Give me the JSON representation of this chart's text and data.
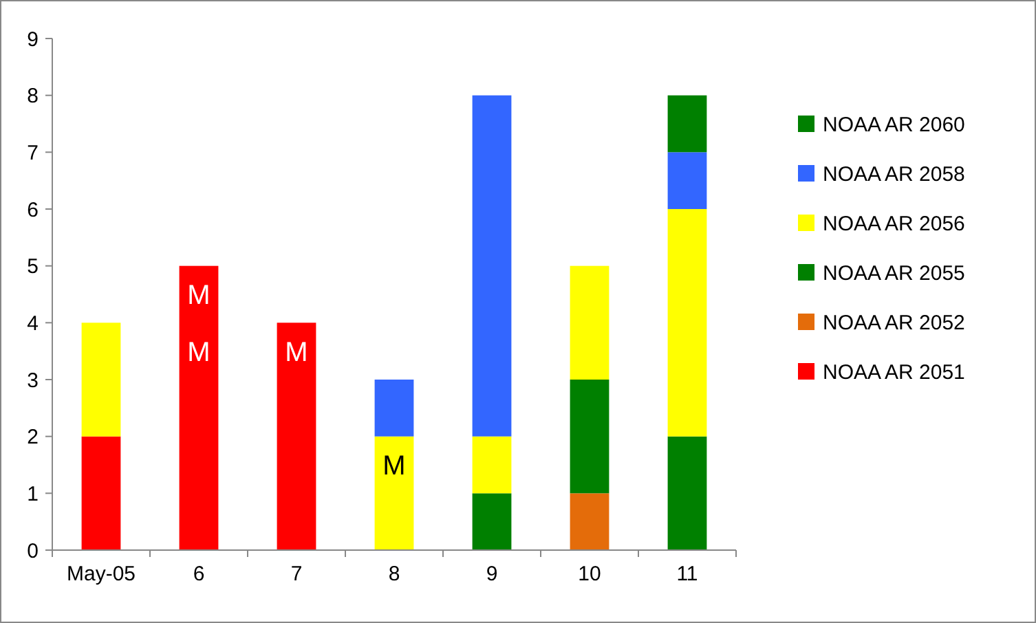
{
  "chart_data": {
    "type": "bar",
    "stacked": true,
    "categories": [
      "May-05",
      "6",
      "7",
      "8",
      "9",
      "10",
      "11"
    ],
    "series": [
      {
        "name": "NOAA AR 2051",
        "color": "#ff0000",
        "values": [
          2,
          5,
          4,
          null,
          null,
          null,
          null
        ]
      },
      {
        "name": "NOAA AR 2052",
        "color": "#e46c0a",
        "values": [
          null,
          null,
          null,
          null,
          null,
          1,
          null
        ]
      },
      {
        "name": "NOAA AR 2055",
        "color": "#008000",
        "values": [
          null,
          null,
          null,
          null,
          1,
          2,
          2
        ]
      },
      {
        "name": "NOAA AR 2056",
        "color": "#ffff00",
        "values": [
          2,
          null,
          null,
          2,
          1,
          2,
          4
        ]
      },
      {
        "name": "NOAA AR 2058",
        "color": "#3366ff",
        "values": [
          null,
          null,
          null,
          1,
          6,
          null,
          1
        ]
      },
      {
        "name": "NOAA AR 2060",
        "color": "#008000",
        "values": [
          null,
          null,
          null,
          null,
          null,
          null,
          1
        ]
      }
    ],
    "ylim": [
      0,
      9
    ],
    "yticks": [
      0,
      1,
      2,
      3,
      4,
      5,
      6,
      7,
      8,
      9
    ],
    "grid": false,
    "legend": "right",
    "annotations": [
      "M",
      "M",
      "M",
      "M"
    ]
  }
}
